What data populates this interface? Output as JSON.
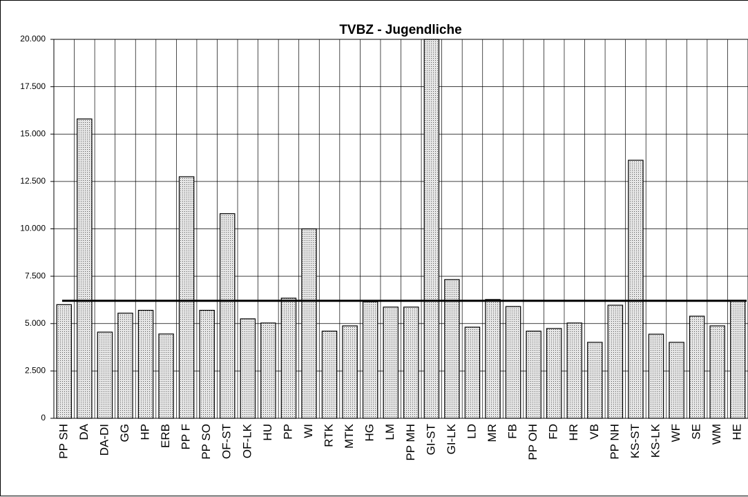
{
  "chart_data": {
    "type": "bar",
    "title": "TVBZ - Jugendliche",
    "categories": [
      "PP SH",
      "DA",
      "DA-DI",
      "GG",
      "HP",
      "ERB",
      "PP F",
      "PP SO",
      "OF-ST",
      "OF-LK",
      "HU",
      "PP",
      "WI",
      "RTK",
      "MTK",
      "HG",
      "LM",
      "PP MH",
      "GI-ST",
      "GI-LK",
      "LD",
      "MR",
      "FB",
      "PP OH",
      "FD",
      "HR",
      "VB",
      "PP NH",
      "KS-ST",
      "KS-LK",
      "WF",
      "SE",
      "WM",
      "HE"
    ],
    "values": [
      6000,
      15800,
      4550,
      5550,
      5700,
      4450,
      12750,
      5700,
      10800,
      5250,
      5030,
      6340,
      10000,
      4600,
      4880,
      6150,
      5870,
      5870,
      20000,
      7320,
      4810,
      6270,
      5900,
      4600,
      4740,
      5030,
      4010,
      5970,
      13620,
      4440,
      4010,
      5390,
      4880,
      6190
    ],
    "color": "#c8c8c8",
    "reference_line": 6200,
    "ylim": [
      0,
      20000
    ],
    "yticks": [
      0,
      {
        "value": 2500,
        "label": "2.500"
      },
      {
        "value": 5000,
        "label": "5.000"
      },
      {
        "value": 7500,
        "label": "7.500"
      },
      {
        "value": 10000,
        "label": "10.000"
      },
      {
        "value": 12500,
        "label": "12.500"
      },
      {
        "value": 15000,
        "label": "15.000"
      },
      {
        "value": 17500,
        "label": "17.500"
      },
      {
        "value": 20000,
        "label": "20.000"
      }
    ],
    "grid": true
  }
}
